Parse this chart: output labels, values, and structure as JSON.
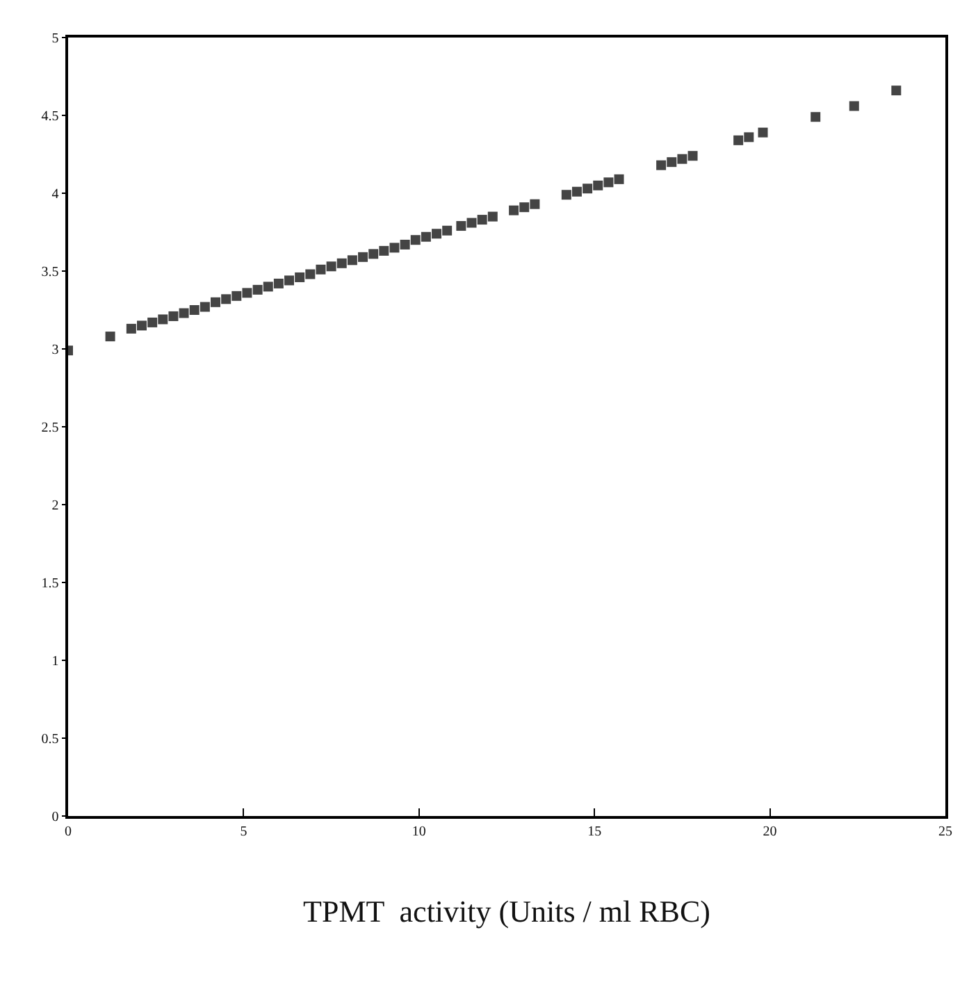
{
  "chart_data": {
    "type": "scatter",
    "xlabel": "TPMT  activity (Units / ml RBC)",
    "x": [
      0,
      1.2,
      1.8,
      2.1,
      2.4,
      2.7,
      3.0,
      3.3,
      3.6,
      3.9,
      4.2,
      4.5,
      4.8,
      5.1,
      5.4,
      5.7,
      6.0,
      6.3,
      6.6,
      6.9,
      7.2,
      7.5,
      7.8,
      8.1,
      8.4,
      8.7,
      9.0,
      9.3,
      9.6,
      9.9,
      10.2,
      10.5,
      10.8,
      11.2,
      11.5,
      11.8,
      12.1,
      12.7,
      13.0,
      13.3,
      14.2,
      14.5,
      14.8,
      15.1,
      15.4,
      15.7,
      16.9,
      17.2,
      17.5,
      17.8,
      19.1,
      19.4,
      19.8,
      21.3,
      22.4,
      23.6
    ],
    "series": [
      {
        "color": "#444444",
        "values": [
          2.99,
          3.08,
          3.13,
          3.15,
          3.17,
          3.19,
          3.21,
          3.23,
          3.25,
          3.27,
          3.3,
          3.32,
          3.34,
          3.36,
          3.38,
          3.4,
          3.42,
          3.44,
          3.46,
          3.48,
          3.51,
          3.53,
          3.55,
          3.57,
          3.59,
          3.61,
          3.63,
          3.65,
          3.67,
          3.7,
          3.72,
          3.74,
          3.76,
          3.79,
          3.81,
          3.83,
          3.85,
          3.89,
          3.91,
          3.93,
          3.99,
          4.01,
          4.03,
          4.05,
          4.07,
          4.09,
          4.18,
          4.2,
          4.22,
          4.24,
          4.34,
          4.36,
          4.39,
          4.49,
          4.56,
          4.66
        ]
      }
    ],
    "xlim": [
      0,
      25
    ],
    "xticks": [
      0,
      5,
      10,
      15,
      20,
      25
    ],
    "ylim": [
      0,
      5
    ],
    "yticks": [
      0,
      0.5,
      1,
      1.5,
      2,
      2.5,
      3,
      3.5,
      4,
      4.5,
      5
    ],
    "marker": "square"
  }
}
